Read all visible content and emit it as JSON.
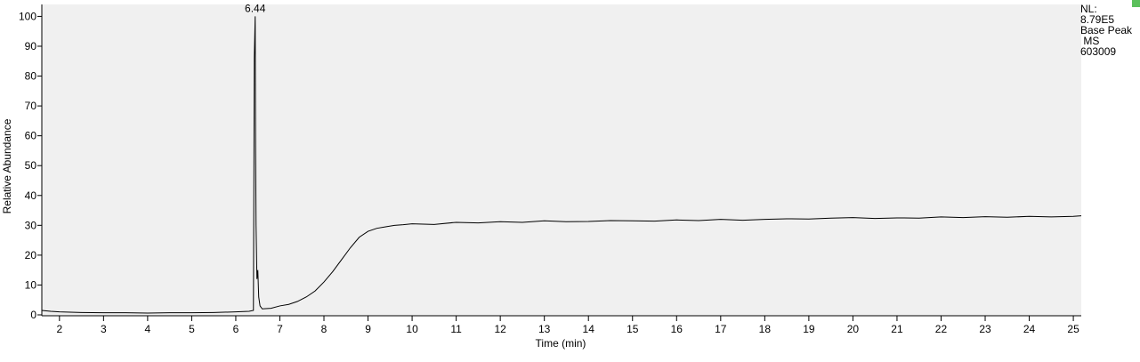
{
  "chart_data": {
    "type": "line",
    "x_label": "Time (min)",
    "y_label": "Relative Abundance",
    "side_labels": [
      "NL:",
      "8.79E5",
      "Base Peak",
      " MS",
      "603009"
    ],
    "x": [
      1.6,
      1.8,
      2.0,
      2.5,
      3,
      3.5,
      4,
      4.5,
      5,
      5.5,
      6,
      6.3,
      6.4,
      6.42,
      6.44,
      6.45,
      6.46,
      6.48,
      6.5,
      6.52,
      6.55,
      6.6,
      6.8,
      7,
      7.2,
      7.4,
      7.6,
      7.8,
      8,
      8.2,
      8.4,
      8.6,
      8.8,
      9,
      9.2,
      9.4,
      9.6,
      9.8,
      10,
      10.5,
      11,
      11.5,
      12,
      12.5,
      13,
      13.5,
      14,
      14.5,
      15,
      15.5,
      16,
      16.5,
      17,
      17.5,
      18,
      18.5,
      19,
      19.5,
      20,
      20.5,
      21,
      21.5,
      22,
      22.5,
      23,
      23.5,
      24,
      24.5,
      25,
      25.18
    ],
    "values": [
      1.5,
      1.2,
      1.0,
      0.8,
      0.7,
      0.7,
      0.6,
      0.7,
      0.7,
      0.8,
      1.0,
      1.2,
      1.5,
      86,
      100,
      55,
      30,
      12,
      15,
      6,
      3,
      2,
      2.2,
      3,
      3.5,
      4.5,
      6,
      8,
      11,
      14.5,
      18.5,
      22.5,
      26,
      28,
      29,
      29.5,
      30,
      30.2,
      30.5,
      30.3,
      31,
      30.8,
      31.2,
      31,
      31.5,
      31.2,
      31.3,
      31.6,
      31.5,
      31.4,
      31.8,
      31.6,
      32,
      31.7,
      32,
      32.2,
      32.1,
      32.4,
      32.6,
      32.3,
      32.5,
      32.4,
      32.8,
      32.6,
      32.9,
      32.7,
      33,
      32.8,
      33,
      33.2
    ],
    "color": "#000000",
    "xlim": [
      1.6,
      25.18
    ],
    "ylim": [
      0,
      104
    ],
    "xticks": [
      2,
      3,
      4,
      5,
      6,
      7,
      8,
      9,
      10,
      11,
      12,
      13,
      14,
      15,
      16,
      17,
      18,
      19,
      20,
      21,
      22,
      23,
      24,
      25
    ],
    "yticks": [
      0,
      10,
      20,
      30,
      40,
      50,
      60,
      70,
      80,
      90,
      100
    ]
  }
}
